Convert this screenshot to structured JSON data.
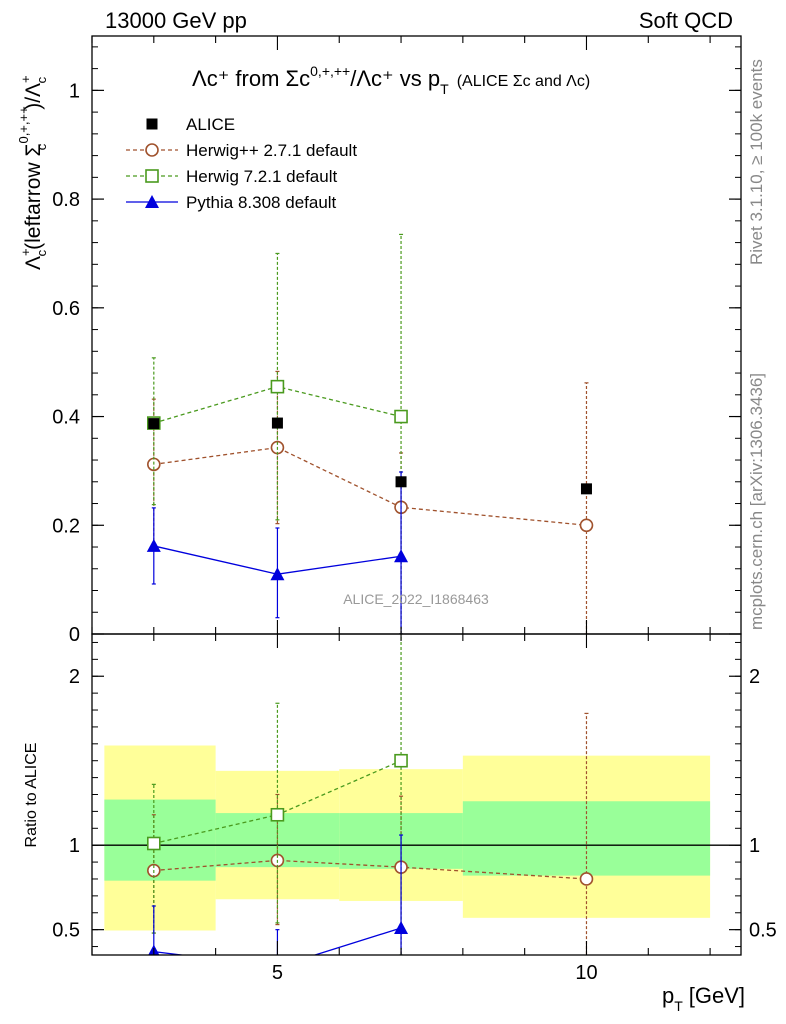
{
  "header": {
    "left": "13000 GeV pp",
    "right": "Soft QCD"
  },
  "side_labels": {
    "rivet": "Rivet 3.1.10, ≥ 100k events",
    "mcplots": "mcplots.cern.ch [arXiv:1306.3436]"
  },
  "watermark": "ALICE_2022_I1868463",
  "chart_data": [
    {
      "type": "scatter",
      "panel": "main",
      "title_main": "Λc⁺ from Σc",
      "title_sup": "0,+,++",
      "title_mid": "/Λc⁺ vs p",
      "title_sub": "T",
      "title_note": "(ALICE Σc and Λc)",
      "ylabel": "Λc⁺(leftarrow Σc⁰ʲ⁺ʲ⁺⁺)/Λc⁺",
      "ylabel_parts": {
        "a": "Λ",
        "a_sup": "+",
        "a_sub": "c",
        "b": "(leftarrow Σ",
        "b_sup": "0,+,++",
        "b_sub": "c",
        "c": ")/Λ",
        "c_sup": "+",
        "c_sub": "c"
      },
      "xlim": [
        2,
        12.5
      ],
      "ylim": [
        0,
        1.1
      ],
      "yticks": [
        0,
        0.2,
        0.4,
        0.6,
        0.8,
        1
      ],
      "ytick_labels": [
        "0",
        "0.2",
        "0.4",
        "0.6",
        "0.8",
        "1"
      ],
      "legend_position": "top-left",
      "series": [
        {
          "name": "ALICE",
          "color": "#000000",
          "marker": "filled-square",
          "line": "none",
          "x": [
            3,
            5,
            7,
            10
          ],
          "y": [
            0.387,
            0.388,
            0.28,
            0.267
          ],
          "yerr_lo": [
            0.0,
            0.0,
            0.0,
            0.0
          ],
          "yerr_hi": [
            0.0,
            0.0,
            0.0,
            0.0
          ]
        },
        {
          "name": "Herwig++ 2.7.1 default",
          "color": "#a0522d",
          "marker": "open-circle",
          "line": "dashed",
          "x": [
            3,
            5,
            7,
            10
          ],
          "y": [
            0.312,
            0.343,
            0.233,
            0.2
          ],
          "yerr_lo": [
            0.15,
            0.14,
            0.233,
            0.2
          ],
          "yerr_hi": [
            0.12,
            0.14,
            0.1,
            0.262
          ]
        },
        {
          "name": "Herwig 7.2.1 default",
          "color": "#4a9a1e",
          "marker": "open-square",
          "line": "dashed",
          "x": [
            3,
            5,
            7
          ],
          "y": [
            0.388,
            0.455,
            0.4
          ],
          "yerr_lo": [
            0.15,
            0.245,
            0.4
          ],
          "yerr_hi": [
            0.12,
            0.245,
            0.335
          ]
        },
        {
          "name": "Pythia 8.308 default",
          "color": "#0000dd",
          "marker": "filled-triangle",
          "line": "solid",
          "x": [
            3,
            5,
            7
          ],
          "y": [
            0.162,
            0.11,
            0.143
          ],
          "yerr_lo": [
            0.07,
            0.08,
            0.143
          ],
          "yerr_hi": [
            0.07,
            0.085,
            0.155
          ]
        }
      ]
    },
    {
      "type": "scatter",
      "panel": "ratio",
      "ylabel": "Ratio to ALICE",
      "xlabel": "p",
      "xlabel_sub": "T",
      "xlabel_unit": "[GeV]",
      "xlim": [
        2,
        12.5
      ],
      "ylim": [
        0.35,
        2.25
      ],
      "xticks": [
        5,
        10
      ],
      "xtick_labels": [
        "5",
        "10"
      ],
      "yticks": [
        0.5,
        1,
        2
      ],
      "ytick_labels": [
        "0.5",
        "1",
        "2"
      ],
      "bands": [
        {
          "x0": 2.2,
          "x1": 4,
          "yellow": [
            0.495,
            1.59
          ],
          "green": [
            0.79,
            1.27
          ]
        },
        {
          "x0": 4,
          "x1": 6,
          "yellow": [
            0.68,
            1.44
          ],
          "green": [
            0.87,
            1.19
          ]
        },
        {
          "x0": 6,
          "x1": 8,
          "yellow": [
            0.67,
            1.45
          ],
          "green": [
            0.86,
            1.19
          ]
        },
        {
          "x0": 8,
          "x1": 12,
          "yellow": [
            0.57,
            1.53
          ],
          "green": [
            0.82,
            1.26
          ]
        }
      ],
      "series": [
        {
          "name": "Herwig++ 2.7.1 default",
          "color": "#a0522d",
          "marker": "open-circle",
          "line": "dashed",
          "x": [
            3,
            5,
            7,
            10
          ],
          "y": [
            0.85,
            0.91,
            0.87,
            0.8
          ],
          "yerr_lo": [
            0.37,
            0.38,
            0.87,
            0.8
          ],
          "yerr_hi": [
            0.33,
            0.39,
            0.42,
            0.98
          ]
        },
        {
          "name": "Herwig 7.2.1 default",
          "color": "#4a9a1e",
          "marker": "open-square",
          "line": "dashed",
          "x": [
            3,
            5,
            7
          ],
          "y": [
            1.01,
            1.18,
            1.5
          ],
          "yerr_lo": [
            0.53,
            0.64,
            1.15
          ],
          "yerr_hi": [
            0.35,
            0.66,
            1.2
          ]
        },
        {
          "name": "Pythia 8.308 default",
          "color": "#0000dd",
          "marker": "filled-triangle",
          "line": "solid",
          "x": [
            3,
            5,
            7
          ],
          "y": [
            0.37,
            0.28,
            0.51
          ],
          "yerr_lo": [
            0.18,
            0.2,
            0.51
          ],
          "yerr_hi": [
            0.27,
            0.22,
            0.55
          ]
        }
      ]
    }
  ]
}
